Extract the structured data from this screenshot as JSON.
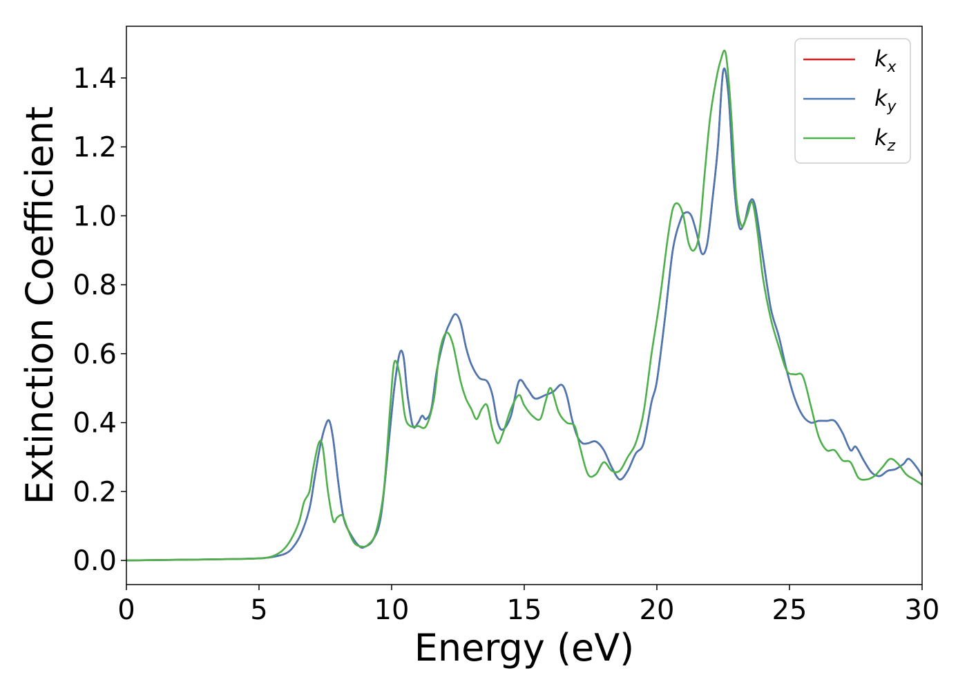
{
  "chart_data": {
    "type": "line",
    "xlabel": "Energy (eV)",
    "ylabel": "Extinction Coefficient",
    "xlim": [
      0,
      30
    ],
    "ylim": [
      -0.07,
      1.55
    ],
    "xticks": [
      0,
      5,
      10,
      15,
      20,
      25,
      30
    ],
    "yticks": [
      0.0,
      0.2,
      0.4,
      0.6,
      0.8,
      1.0,
      1.2,
      1.4
    ],
    "xtick_labels": [
      "0",
      "5",
      "10",
      "15",
      "20",
      "25",
      "30"
    ],
    "ytick_labels": [
      "0.0",
      "0.2",
      "0.4",
      "0.6",
      "0.8",
      "1.0",
      "1.2",
      "1.4"
    ],
    "grid": false,
    "legend_position": "top-right",
    "series": [
      {
        "name": "k_x",
        "label_base": "k",
        "label_sub": "x",
        "color": "#e41a1c",
        "x": [
          0,
          2,
          4,
          5,
          5.5,
          6,
          6.3,
          6.6,
          6.9,
          7.1,
          7.3,
          7.5,
          7.65,
          7.8,
          8.0,
          8.2,
          8.5,
          8.8,
          9.0,
          9.3,
          9.6,
          9.9,
          10.1,
          10.3,
          10.45,
          10.6,
          10.8,
          11.0,
          11.15,
          11.3,
          11.5,
          11.7,
          12.0,
          12.2,
          12.4,
          12.6,
          12.8,
          13.0,
          13.3,
          13.6,
          13.8,
          14.0,
          14.2,
          14.5,
          14.8,
          15.1,
          15.4,
          15.8,
          16.1,
          16.4,
          16.6,
          16.8,
          17.0,
          17.2,
          17.4,
          17.7,
          18.0,
          18.3,
          18.6,
          18.9,
          19.2,
          19.5,
          19.8,
          20.0,
          20.3,
          20.6,
          20.9,
          21.1,
          21.3,
          21.5,
          21.7,
          21.9,
          22.1,
          22.3,
          22.5,
          22.7,
          22.9,
          23.1,
          23.3,
          23.5,
          23.7,
          24.0,
          24.3,
          24.6,
          24.9,
          25.2,
          25.5,
          25.8,
          26.1,
          26.4,
          26.7,
          27.0,
          27.3,
          27.5,
          27.8,
          28.1,
          28.4,
          28.7,
          29.0,
          29.3,
          29.5,
          29.8,
          30
        ],
        "y": [
          0.0,
          0.002,
          0.004,
          0.006,
          0.01,
          0.02,
          0.04,
          0.08,
          0.15,
          0.24,
          0.33,
          0.39,
          0.405,
          0.35,
          0.22,
          0.12,
          0.07,
          0.04,
          0.04,
          0.06,
          0.13,
          0.35,
          0.5,
          0.6,
          0.59,
          0.48,
          0.39,
          0.4,
          0.42,
          0.41,
          0.44,
          0.55,
          0.65,
          0.69,
          0.715,
          0.69,
          0.62,
          0.57,
          0.53,
          0.52,
          0.48,
          0.4,
          0.38,
          0.42,
          0.52,
          0.5,
          0.47,
          0.48,
          0.49,
          0.51,
          0.48,
          0.41,
          0.36,
          0.34,
          0.34,
          0.345,
          0.32,
          0.27,
          0.235,
          0.26,
          0.31,
          0.34,
          0.46,
          0.52,
          0.7,
          0.9,
          0.99,
          1.01,
          1.0,
          0.95,
          0.89,
          0.92,
          1.05,
          1.2,
          1.42,
          1.35,
          1.1,
          0.97,
          0.98,
          1.04,
          1.03,
          0.88,
          0.73,
          0.65,
          0.55,
          0.47,
          0.42,
          0.4,
          0.405,
          0.405,
          0.405,
          0.37,
          0.32,
          0.33,
          0.29,
          0.255,
          0.245,
          0.26,
          0.265,
          0.28,
          0.295,
          0.27,
          0.245
        ]
      },
      {
        "name": "k_y",
        "label_base": "k",
        "label_sub": "y",
        "color": "#4878b4",
        "x": [
          0,
          2,
          4,
          5,
          5.5,
          6,
          6.3,
          6.6,
          6.9,
          7.1,
          7.3,
          7.5,
          7.65,
          7.8,
          8.0,
          8.2,
          8.5,
          8.8,
          9.0,
          9.3,
          9.6,
          9.9,
          10.1,
          10.3,
          10.45,
          10.6,
          10.8,
          11.0,
          11.15,
          11.3,
          11.5,
          11.7,
          12.0,
          12.2,
          12.4,
          12.6,
          12.8,
          13.0,
          13.3,
          13.6,
          13.8,
          14.0,
          14.2,
          14.5,
          14.8,
          15.1,
          15.4,
          15.8,
          16.1,
          16.4,
          16.6,
          16.8,
          17.0,
          17.2,
          17.4,
          17.7,
          18.0,
          18.3,
          18.6,
          18.9,
          19.2,
          19.5,
          19.8,
          20.0,
          20.3,
          20.6,
          20.9,
          21.1,
          21.3,
          21.5,
          21.7,
          21.9,
          22.1,
          22.3,
          22.5,
          22.7,
          22.9,
          23.1,
          23.3,
          23.5,
          23.7,
          24.0,
          24.3,
          24.6,
          24.9,
          25.2,
          25.5,
          25.8,
          26.1,
          26.4,
          26.7,
          27.0,
          27.3,
          27.5,
          27.8,
          28.1,
          28.4,
          28.7,
          29.0,
          29.3,
          29.5,
          29.8,
          30
        ],
        "y": [
          0.0,
          0.002,
          0.004,
          0.006,
          0.01,
          0.02,
          0.04,
          0.08,
          0.15,
          0.24,
          0.33,
          0.39,
          0.405,
          0.35,
          0.22,
          0.12,
          0.07,
          0.04,
          0.04,
          0.06,
          0.13,
          0.35,
          0.5,
          0.6,
          0.59,
          0.48,
          0.39,
          0.4,
          0.42,
          0.41,
          0.44,
          0.55,
          0.65,
          0.69,
          0.715,
          0.69,
          0.62,
          0.57,
          0.53,
          0.52,
          0.48,
          0.4,
          0.38,
          0.42,
          0.52,
          0.5,
          0.47,
          0.48,
          0.49,
          0.51,
          0.48,
          0.41,
          0.36,
          0.34,
          0.34,
          0.345,
          0.32,
          0.27,
          0.235,
          0.26,
          0.31,
          0.34,
          0.46,
          0.52,
          0.7,
          0.9,
          0.99,
          1.01,
          1.0,
          0.95,
          0.89,
          0.92,
          1.05,
          1.2,
          1.42,
          1.35,
          1.1,
          0.97,
          0.98,
          1.04,
          1.03,
          0.88,
          0.73,
          0.65,
          0.55,
          0.47,
          0.42,
          0.4,
          0.405,
          0.405,
          0.405,
          0.37,
          0.32,
          0.33,
          0.29,
          0.255,
          0.245,
          0.26,
          0.265,
          0.28,
          0.295,
          0.27,
          0.245
        ]
      },
      {
        "name": "k_z",
        "label_base": "k",
        "label_sub": "z",
        "color": "#4daf4a",
        "x": [
          0,
          2,
          4,
          5,
          5.5,
          5.9,
          6.2,
          6.5,
          6.7,
          6.9,
          7.05,
          7.25,
          7.4,
          7.6,
          7.8,
          7.95,
          8.15,
          8.35,
          8.6,
          8.9,
          9.1,
          9.4,
          9.7,
          9.95,
          10.1,
          10.3,
          10.5,
          10.7,
          11.0,
          11.3,
          11.6,
          11.8,
          12.05,
          12.3,
          12.6,
          12.8,
          13.0,
          13.2,
          13.4,
          13.6,
          13.8,
          14.0,
          14.2,
          14.5,
          14.8,
          15.0,
          15.3,
          15.6,
          15.8,
          16.0,
          16.3,
          16.6,
          16.9,
          17.1,
          17.4,
          17.7,
          18.0,
          18.3,
          18.6,
          18.9,
          19.2,
          19.5,
          19.8,
          20.1,
          20.4,
          20.6,
          20.8,
          21.0,
          21.2,
          21.4,
          21.6,
          21.8,
          22.0,
          22.2,
          22.4,
          22.6,
          22.8,
          23.0,
          23.2,
          23.4,
          23.6,
          23.8,
          24.0,
          24.3,
          24.6,
          24.9,
          25.2,
          25.5,
          25.8,
          26.1,
          26.4,
          26.7,
          27.0,
          27.3,
          27.6,
          27.9,
          28.2,
          28.5,
          28.8,
          29.1,
          29.4,
          29.7,
          30
        ],
        "y": [
          0.0,
          0.002,
          0.004,
          0.006,
          0.012,
          0.03,
          0.06,
          0.11,
          0.17,
          0.2,
          0.27,
          0.34,
          0.33,
          0.2,
          0.115,
          0.125,
          0.13,
          0.09,
          0.05,
          0.04,
          0.045,
          0.08,
          0.2,
          0.45,
          0.575,
          0.54,
          0.42,
          0.39,
          0.39,
          0.39,
          0.47,
          0.6,
          0.66,
          0.63,
          0.52,
          0.47,
          0.44,
          0.41,
          0.44,
          0.45,
          0.38,
          0.34,
          0.37,
          0.44,
          0.48,
          0.45,
          0.42,
          0.41,
          0.46,
          0.5,
          0.43,
          0.4,
          0.39,
          0.33,
          0.25,
          0.25,
          0.285,
          0.26,
          0.26,
          0.3,
          0.34,
          0.43,
          0.6,
          0.75,
          0.93,
          1.02,
          1.035,
          1.0,
          0.92,
          0.9,
          0.95,
          1.12,
          1.28,
          1.38,
          1.45,
          1.47,
          1.3,
          1.05,
          0.97,
          1.0,
          1.04,
          0.95,
          0.82,
          0.7,
          0.62,
          0.55,
          0.54,
          0.535,
          0.45,
          0.36,
          0.32,
          0.32,
          0.29,
          0.285,
          0.24,
          0.235,
          0.245,
          0.27,
          0.295,
          0.28,
          0.25,
          0.235,
          0.22
        ]
      }
    ]
  }
}
